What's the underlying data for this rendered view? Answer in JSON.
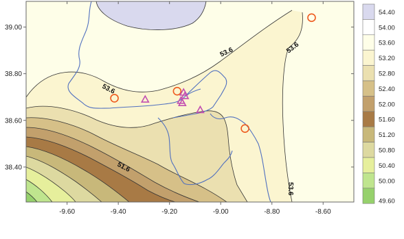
{
  "map": {
    "x_ticks": [
      {
        "value": -9.6,
        "label": "-9.60"
      },
      {
        "value": -9.4,
        "label": "-9.40"
      },
      {
        "value": -9.2,
        "label": "-9.20"
      },
      {
        "value": -9.0,
        "label": "-9.00"
      },
      {
        "value": -8.8,
        "label": "-8.80"
      },
      {
        "value": -8.6,
        "label": "-8.60"
      }
    ],
    "y_ticks": [
      {
        "value": 39.0,
        "label": "39.00"
      },
      {
        "value": 38.8,
        "label": "38.80"
      },
      {
        "value": 38.6,
        "label": "38.60"
      },
      {
        "value": 38.4,
        "label": "38.40"
      }
    ],
    "xlim": [
      -9.76,
      -8.48
    ],
    "ylim": [
      38.25,
      39.11
    ],
    "contour_labels": [
      "53.6",
      "53.6",
      "53.6",
      "53.6",
      "51.6"
    ],
    "circle_markers": [
      {
        "x": -8.645,
        "y": 39.04
      },
      {
        "x": -9.415,
        "y": 38.695
      },
      {
        "x": -9.17,
        "y": 38.725
      },
      {
        "x": -8.905,
        "y": 38.565
      }
    ],
    "triangle_markers": [
      {
        "x": -9.295,
        "y": 38.69
      },
      {
        "x": -9.145,
        "y": 38.72
      },
      {
        "x": -9.14,
        "y": 38.705
      },
      {
        "x": -9.155,
        "y": 38.685
      },
      {
        "x": -9.15,
        "y": 38.675
      },
      {
        "x": -9.08,
        "y": 38.645
      }
    ]
  },
  "legend": {
    "levels": [
      "54.40",
      "54.00",
      "53.60",
      "53.20",
      "52.80",
      "52.40",
      "52.00",
      "51.60",
      "51.20",
      "50.80",
      "50.40",
      "50.00",
      "49.60"
    ],
    "colors": [
      "#d9d9ee",
      "#ffffff",
      "#fefee8",
      "#fbf5d0",
      "#ebe0b0",
      "#d6c088",
      "#c2a06c",
      "#a87a45",
      "#c8b87a",
      "#ddd9a0",
      "#e6ef9c",
      "#bfe58e",
      "#96d16c"
    ]
  },
  "colors": {
    "coast": "#4f6fbf",
    "circle": "#ee5a1e",
    "triangle": "#c24fb1",
    "frame": "#666666"
  }
}
